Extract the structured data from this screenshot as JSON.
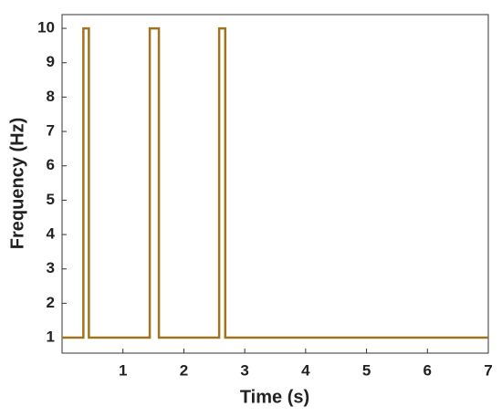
{
  "chart_data": {
    "type": "line",
    "x_label": "Time (s)",
    "y_label": "Frequency (Hz)",
    "x": [
      0,
      0.35,
      0.35,
      0.44,
      0.44,
      1.44,
      1.44,
      1.59,
      1.59,
      2.58,
      2.58,
      2.68,
      2.68,
      7
    ],
    "series": [
      {
        "color": "#a0741f",
        "values": [
          1,
          1,
          10,
          10,
          1,
          1,
          10,
          10,
          1,
          1,
          10,
          10,
          1,
          1
        ]
      }
    ],
    "xlim": [
      0,
      7
    ],
    "xticks": [
      1,
      2,
      3,
      4,
      5,
      6,
      7
    ],
    "ylim": [
      0.55,
      10.4
    ],
    "yticks": [
      1,
      2,
      3,
      4,
      5,
      6,
      7,
      8,
      9,
      10
    ],
    "grid": false
  }
}
